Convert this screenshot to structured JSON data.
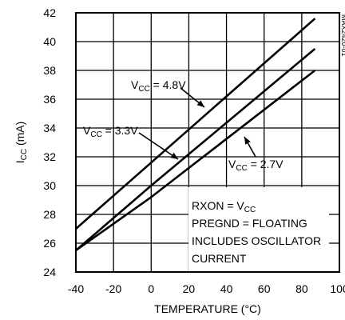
{
  "chart_data": {
    "type": "line",
    "figure_id": "MAX2420-01",
    "xlabel": "TEMPERATURE (°C)",
    "ylabel": {
      "main": "I",
      "sub": "CC",
      "unit": " (mA)"
    },
    "xlim": [
      -40,
      100
    ],
    "ylim": [
      24,
      42
    ],
    "xticks": [
      -40,
      -20,
      0,
      20,
      40,
      60,
      80,
      100
    ],
    "yticks": [
      24,
      26,
      28,
      30,
      32,
      34,
      36,
      38,
      40,
      42
    ],
    "grid": true,
    "series": [
      {
        "name": "VCC = 4.8V",
        "x": [
          -40,
          87
        ],
        "y": [
          27.0,
          41.6
        ]
      },
      {
        "name": "VCC = 3.3V",
        "x": [
          -40,
          0,
          87
        ],
        "y": [
          25.5,
          30.0,
          39.5
        ]
      },
      {
        "name": "VCC = 2.7V",
        "x": [
          -40,
          0,
          87
        ],
        "y": [
          25.5,
          29.2,
          38.0
        ]
      }
    ],
    "series_labels": [
      {
        "main": "V",
        "sub": "CC",
        "rest": " = 4.8V"
      },
      {
        "main": "V",
        "sub": "CC",
        "rest": " = 3.3V"
      },
      {
        "main": "V",
        "sub": "CC",
        "rest": " = 2.7V"
      }
    ],
    "conditions": [
      {
        "main": "RXON = V",
        "sub": "CC"
      },
      {
        "main": "PREGND = FLOATING",
        "sub": ""
      },
      {
        "main": "INCLUDES OSCILLATOR",
        "sub": ""
      },
      {
        "main": "CURRENT",
        "sub": ""
      }
    ]
  }
}
